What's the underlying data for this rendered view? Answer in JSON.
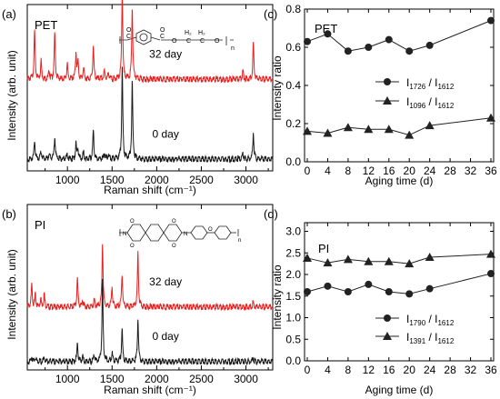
{
  "chart_data": [
    {
      "id": "a",
      "type": "line",
      "panel_label": "(a)",
      "sample_label": "PET",
      "xlabel": "Raman shift (cm⁻¹)",
      "ylabel": "Intensity (arb. unit)",
      "xlim": [
        550,
        3300
      ],
      "xticks": [
        1000,
        1500,
        2000,
        2500,
        3000
      ],
      "ylim": [
        0,
        1
      ],
      "yticks_shown": false,
      "series": [
        {
          "label": "32 day",
          "color": "#e8201f",
          "baseline": 0.56,
          "label_x": 2100,
          "peaks": [
            [
              632,
              0.29
            ],
            [
              705,
              0.11
            ],
            [
              795,
              0.05
            ],
            [
              858,
              0.28
            ],
            [
              998,
              0.09
            ],
            [
              1096,
              0.16
            ],
            [
              1118,
              0.1
            ],
            [
              1180,
              0.07
            ],
            [
              1290,
              0.2
            ],
            [
              1414,
              0.05
            ],
            [
              1460,
              0.04
            ],
            [
              1614,
              0.54
            ],
            [
              1726,
              0.43
            ],
            [
              2966,
              0.05
            ],
            [
              3083,
              0.22
            ]
          ]
        },
        {
          "label": "0 day",
          "color": "#1a1a1a",
          "baseline": 0.08,
          "label_x": 2100,
          "peaks": [
            [
              632,
              0.11
            ],
            [
              705,
              0.05
            ],
            [
              795,
              0.03
            ],
            [
              858,
              0.14
            ],
            [
              998,
              0.03
            ],
            [
              1096,
              0.09
            ],
            [
              1118,
              0.06
            ],
            [
              1180,
              0.04
            ],
            [
              1290,
              0.17
            ],
            [
              1414,
              0.04
            ],
            [
              1460,
              0.03
            ],
            [
              1614,
              0.55
            ],
            [
              1726,
              0.46
            ],
            [
              2966,
              0.03
            ],
            [
              3083,
              0.16
            ]
          ]
        }
      ]
    },
    {
      "id": "b",
      "type": "line",
      "panel_label": "(b)",
      "sample_label": "PI",
      "xlabel": "Raman shift (cm⁻¹)",
      "ylabel": "Intensity (arb. unit)",
      "xlim": [
        550,
        3300
      ],
      "xticks": [
        1000,
        1500,
        2000,
        2500,
        3000
      ],
      "ylim": [
        0,
        1
      ],
      "yticks_shown": false,
      "series": [
        {
          "label": "32 day",
          "color": "#e8201f",
          "baseline": 0.39,
          "label_x": 2100,
          "peaks": [
            [
              600,
              0.13
            ],
            [
              640,
              0.07
            ],
            [
              700,
              0.05
            ],
            [
              740,
              0.08
            ],
            [
              1112,
              0.17
            ],
            [
              1170,
              0.04
            ],
            [
              1300,
              0.04
            ],
            [
              1393,
              0.38
            ],
            [
              1500,
              0.12
            ],
            [
              1612,
              0.2
            ],
            [
              1790,
              0.32
            ],
            [
              3080,
              0.03
            ]
          ]
        },
        {
          "label": "0 day",
          "color": "#1a1a1a",
          "baseline": 0.06,
          "label_x": 2100,
          "peaks": [
            [
              600,
              0.03
            ],
            [
              640,
              0.02
            ],
            [
              740,
              0.02
            ],
            [
              1112,
              0.11
            ],
            [
              1170,
              0.03
            ],
            [
              1300,
              0.04
            ],
            [
              1393,
              0.49
            ],
            [
              1500,
              0.05
            ],
            [
              1612,
              0.2
            ],
            [
              1790,
              0.26
            ],
            [
              3080,
              0.02
            ]
          ]
        }
      ]
    },
    {
      "id": "c",
      "type": "line",
      "panel_label": "(c)",
      "sample_label": "PET",
      "xlabel": "Aging time (d)",
      "ylabel": "Intensity ratio",
      "x": [
        0,
        4,
        8,
        12,
        16,
        20,
        24,
        36
      ],
      "xlim": [
        0,
        36
      ],
      "xticks": [
        0,
        4,
        8,
        12,
        16,
        20,
        24,
        28,
        32,
        36
      ],
      "ylim": [
        0.0,
        0.8
      ],
      "yticks": [
        0.0,
        0.2,
        0.4,
        0.6,
        0.8
      ],
      "ytick_labels": [
        "0.0",
        "0.2",
        "0.4",
        "0.6",
        "0.8"
      ],
      "series": [
        {
          "label_main": "I",
          "sub_a": "1726",
          "sub_b": "1612",
          "marker": "circle",
          "values": [
            0.63,
            0.67,
            0.58,
            0.6,
            0.64,
            0.58,
            0.61,
            0.74
          ]
        },
        {
          "label_main": "I",
          "sub_a": "1096",
          "sub_b": "1612",
          "marker": "triangle",
          "values": [
            0.16,
            0.15,
            0.18,
            0.17,
            0.17,
            0.14,
            0.19,
            0.23
          ]
        }
      ]
    },
    {
      "id": "d",
      "type": "line",
      "panel_label": "(d)",
      "sample_label": "PI",
      "xlabel": "Aging time (d)",
      "ylabel": "Intensity ratio",
      "x": [
        0,
        4,
        8,
        12,
        16,
        20,
        24,
        36
      ],
      "xlim": [
        0,
        36
      ],
      "xticks": [
        0,
        4,
        8,
        12,
        16,
        20,
        24,
        28,
        32,
        36
      ],
      "ylim": [
        0.0,
        3.2
      ],
      "yticks": [
        0.0,
        0.5,
        1.0,
        1.5,
        2.0,
        2.5,
        3.0
      ],
      "ytick_labels": [
        "0.0",
        "0.5",
        "1.0",
        "1.5",
        "2.0",
        "2.5",
        "3.0"
      ],
      "series": [
        {
          "label_main": "I",
          "sub_a": "1790",
          "sub_b": "1612",
          "marker": "circle",
          "values": [
            1.6,
            1.73,
            1.6,
            1.77,
            1.6,
            1.55,
            1.67,
            2.02
          ]
        },
        {
          "label_main": "I",
          "sub_a": "1391",
          "sub_b": "1612",
          "marker": "triangle",
          "values": [
            2.38,
            2.27,
            2.35,
            2.3,
            2.3,
            2.25,
            2.4,
            2.47
          ]
        }
      ]
    }
  ]
}
